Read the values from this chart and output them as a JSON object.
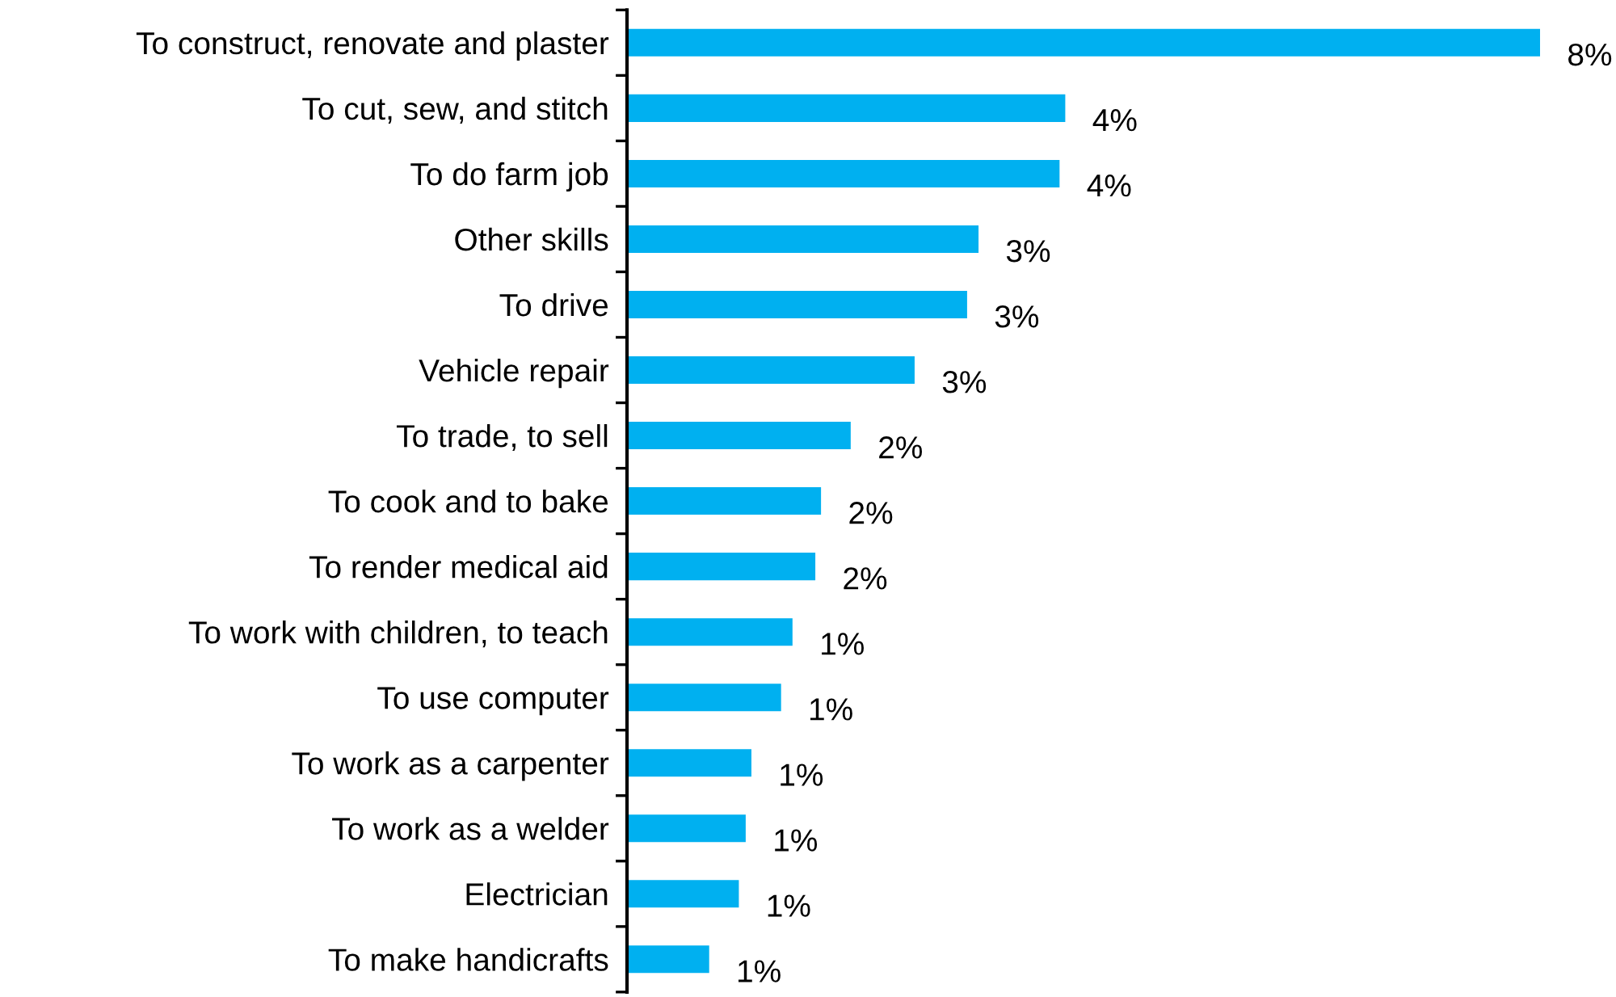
{
  "chart_data": {
    "type": "bar",
    "orientation": "horizontal",
    "categories": [
      "To construct, renovate and plaster",
      "To cut, sew, and stitch",
      "To do farm job",
      "Other skills",
      "To drive",
      "Vehicle repair",
      "To trade, to sell",
      "To cook and to bake",
      "To render medical aid",
      "To work with children, to teach",
      "To use computer",
      "To work as a carpenter",
      "To work as a welder",
      "Electrician",
      "To make handicrafts"
    ],
    "values": [
      8.0,
      3.84,
      3.79,
      3.08,
      2.98,
      2.52,
      1.96,
      1.7,
      1.65,
      1.45,
      1.35,
      1.09,
      1.04,
      0.98,
      0.72
    ],
    "value_labels": [
      "8%",
      "4%",
      "4%",
      "3%",
      "3%",
      "3%",
      "2%",
      "2%",
      "2%",
      "1%",
      "1%",
      "1%",
      "1%",
      "1%",
      "1%"
    ],
    "color": "#00b0f0",
    "grid": false,
    "legend": false
  }
}
